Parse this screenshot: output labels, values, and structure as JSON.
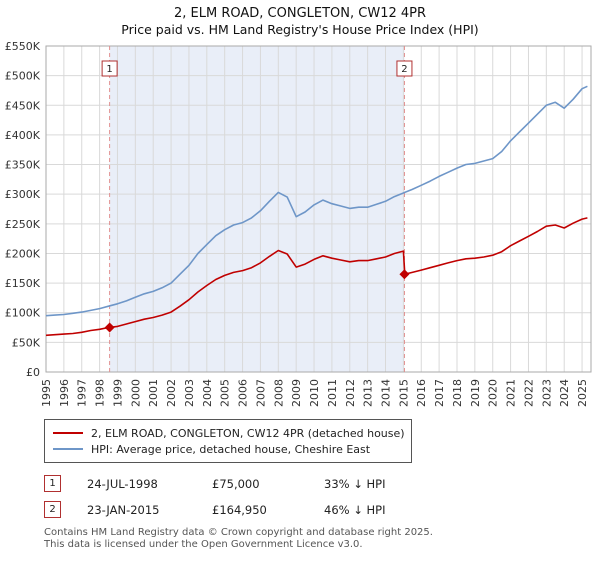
{
  "chart_data": {
    "type": "line",
    "title": "2, ELM ROAD, CONGLETON, CW12 4PR",
    "subtitle": "Price paid vs. HM Land Registry's House Price Index (HPI)",
    "xlim": [
      1995,
      2025.5
    ],
    "ylim": [
      0,
      550000
    ],
    "ytick_step": 50000,
    "grid": true,
    "legend_position": "bottom",
    "y_tick_labels": [
      "£0",
      "£50K",
      "£100K",
      "£150K",
      "£200K",
      "£250K",
      "£300K",
      "£350K",
      "£400K",
      "£450K",
      "£500K",
      "£550K"
    ],
    "x_tick_labels": [
      "1995",
      "1996",
      "1997",
      "1998",
      "1999",
      "2000",
      "2001",
      "2002",
      "2003",
      "2004",
      "2005",
      "2006",
      "2007",
      "2008",
      "2009",
      "2010",
      "2011",
      "2012",
      "2013",
      "2014",
      "2015",
      "2016",
      "2017",
      "2018",
      "2019",
      "2020",
      "2021",
      "2022",
      "2023",
      "2024",
      "2025"
    ],
    "x": [
      1995,
      1995.5,
      1996,
      1996.5,
      1997,
      1997.5,
      1998,
      1998.5,
      1999,
      1999.5,
      2000,
      2000.5,
      2001,
      2001.5,
      2002,
      2002.5,
      2003,
      2003.5,
      2004,
      2004.5,
      2005,
      2005.5,
      2006,
      2006.5,
      2007,
      2007.5,
      2008,
      2008.5,
      2009,
      2009.5,
      2010,
      2010.5,
      2011,
      2011.5,
      2012,
      2012.5,
      2013,
      2013.5,
      2014,
      2014.5,
      2015,
      2015.08,
      2015.5,
      2016,
      2016.5,
      2017,
      2017.5,
      2018,
      2018.5,
      2019,
      2019.5,
      2020,
      2020.5,
      2021,
      2021.5,
      2022,
      2022.5,
      2023,
      2023.5,
      2024,
      2024.5,
      2025,
      2025.3
    ],
    "series": [
      {
        "name": "2, ELM ROAD, CONGLETON, CW12 4PR (detached house)",
        "color": "#c00000",
        "values": [
          62000,
          63000,
          64000,
          65000,
          67000,
          70000,
          72000,
          75000,
          77000,
          81000,
          85000,
          89000,
          92000,
          96000,
          101000,
          111000,
          122000,
          135000,
          146000,
          156000,
          163000,
          168000,
          171000,
          176000,
          184000,
          195000,
          205000,
          199000,
          177000,
          182000,
          190000,
          196000,
          192000,
          189000,
          186000,
          188000,
          188000,
          191000,
          194000,
          200000,
          204000,
          164950,
          168000,
          172000,
          176000,
          180000,
          184000,
          188000,
          191000,
          192000,
          194000,
          197000,
          203000,
          213000,
          221000,
          229000,
          237000,
          246000,
          248000,
          243000,
          251000,
          258000,
          260000
        ]
      },
      {
        "name": "HPI: Average price, detached house, Cheshire East",
        "color": "#6e96c8",
        "values": [
          95000,
          96000,
          97000,
          99000,
          101000,
          104000,
          107000,
          111000,
          115000,
          120000,
          126000,
          132000,
          136000,
          142000,
          150000,
          165000,
          180000,
          200000,
          215000,
          230000,
          240000,
          248000,
          252000,
          260000,
          272000,
          288000,
          303000,
          295000,
          262000,
          270000,
          282000,
          290000,
          284000,
          280000,
          276000,
          278000,
          278000,
          283000,
          288000,
          296000,
          302000,
          303000,
          308000,
          315000,
          322000,
          330000,
          337000,
          344000,
          350000,
          352000,
          356000,
          360000,
          372000,
          390000,
          405000,
          420000,
          435000,
          450000,
          455000,
          445000,
          460000,
          478000,
          482000
        ]
      }
    ],
    "shaded_region": [
      1998.56,
      2015.06
    ],
    "sales": [
      {
        "label": "1",
        "x_year": 1998.56,
        "price_value": 75000,
        "date": "24-JUL-1998",
        "price": "£75,000",
        "hpi_diff": "33% ↓ HPI"
      },
      {
        "label": "2",
        "x_year": 2015.06,
        "price_value": 164950,
        "date": "23-JAN-2015",
        "price": "£164,950",
        "hpi_diff": "46% ↓ HPI"
      }
    ],
    "colors": {
      "shade": "#e9eef8",
      "grid": "#d9d9d9",
      "border": "#aaaaaa",
      "sale_line": "#e09090",
      "marker_box_border": "#b03030",
      "tick_text": "#333333"
    }
  },
  "footer": {
    "line1": "Contains HM Land Registry data © Crown copyright and database right 2025.",
    "line2": "This data is licensed under the Open Government Licence v3.0."
  }
}
